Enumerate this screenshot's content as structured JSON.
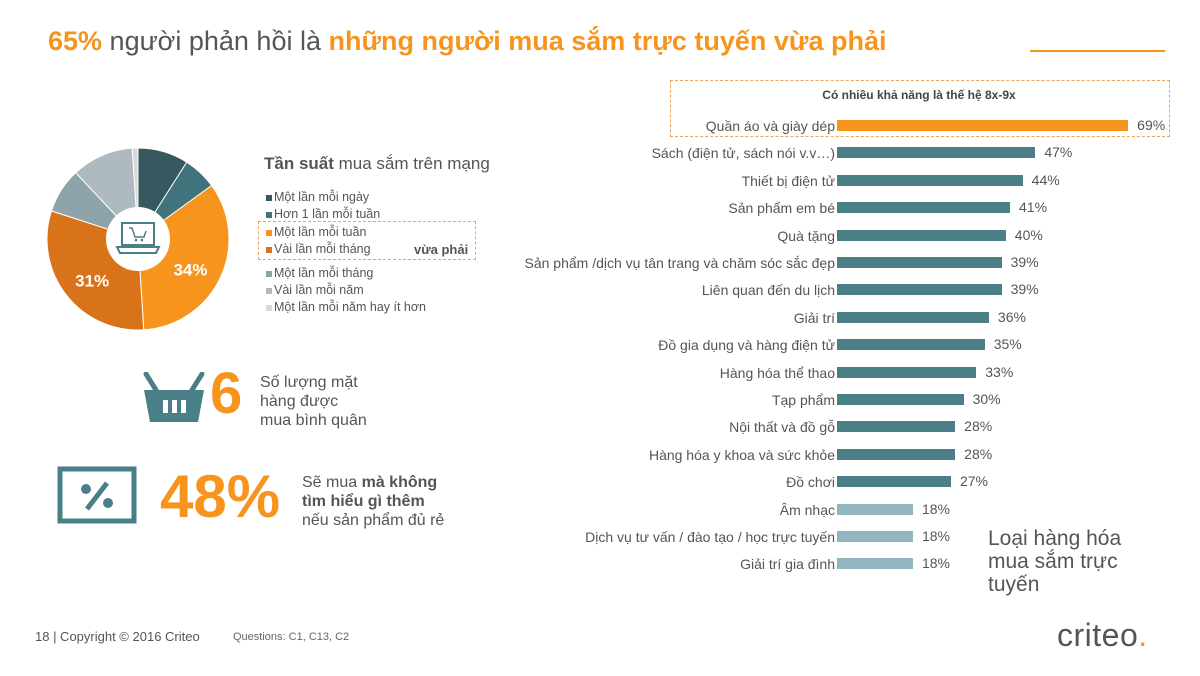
{
  "title": {
    "pct": "65%",
    "mid": " người phản hồi là ",
    "highlight": "những người mua sắm trực tuyến vừa phải"
  },
  "chart_data": [
    {
      "type": "pie",
      "title": "Tần suất mua sắm trên mạng",
      "title_bold": "Tần suất",
      "title_rest": " mua sắm trên mạng",
      "categories": [
        "Một lần mỗi ngày",
        "Hơn 1 lần mỗi tuần",
        "Một lần mỗi tuần",
        "Vài lần mỗi tháng",
        "Một lần mỗi tháng",
        "Vài lần mỗi năm",
        "Một lần mỗi năm hay ít hơn"
      ],
      "values": [
        9,
        6,
        34,
        31,
        8,
        11,
        1
      ],
      "labels": [
        "",
        "",
        "34%",
        "31%",
        "",
        "",
        ""
      ],
      "colors": [
        "#38585f",
        "#41737c",
        "#f7941d",
        "#d9731a",
        "#8ea4aa",
        "#aebabf",
        "#d4dadc"
      ],
      "moderate_label": "vừa phải"
    },
    {
      "type": "bar",
      "orientation": "horizontal",
      "title": "Loại hàng hóa mua sắm trực tuyến",
      "highlight_label": "Có nhiều khả năng là thế hệ 8x-9x",
      "categories": [
        "Quần áo và giày dép",
        "Sách (điện tử, sách nói v.v…)",
        "Thiết bị điện tử",
        "Sản phẩm em bé",
        "Quà tặng",
        "Sản phẩm /dịch vụ  tân trang và chăm sóc sắc đẹp",
        "Liên quan đến du lịch",
        "Giải trí",
        "Đồ gia dụng và hàng điện tử",
        "Hàng hóa thể thao",
        "Tạp phẩm",
        "Nội thất và đồ gỗ",
        "Hàng hóa y khoa và sức khỏe",
        "Đồ chơi",
        "Âm nhạc",
        "Dịch vụ tư vấn / đào tạo / học trực tuyến",
        "Giải trí gia đình"
      ],
      "values": [
        69,
        47,
        44,
        41,
        40,
        39,
        39,
        36,
        35,
        33,
        30,
        28,
        28,
        27,
        18,
        18,
        18
      ],
      "value_labels": [
        "69%",
        "47%",
        "44%",
        "41%",
        "40%",
        "39%",
        "39%",
        "36%",
        "35%",
        "33%",
        "30%",
        "28%",
        "28%",
        "27%",
        "18%",
        "18%",
        "18%"
      ],
      "colors": {
        "highlight": "#f7941d",
        "main": "#4a7f88",
        "low": "#92b6bf"
      }
    }
  ],
  "stats": {
    "items_value": "6",
    "items_text": [
      "Số lượng mặt",
      "hàng được",
      "mua bình quân"
    ],
    "no_research_value": "48%",
    "no_research_pre": "Sẽ mua ",
    "no_research_bold1": "mà không",
    "no_research_bold2": "tìm hiểu gì thêm",
    "no_research_post": "nếu sản phẩm đủ rẻ"
  },
  "category_title": [
    "Loại hàng hóa",
    "mua sắm trực",
    "tuyến"
  ],
  "footer": {
    "text": "18  |  Copyright © 2016 Criteo",
    "questions": "Questions: C1, C13, C2"
  },
  "logo": {
    "text": "criteo",
    "dot": "."
  }
}
